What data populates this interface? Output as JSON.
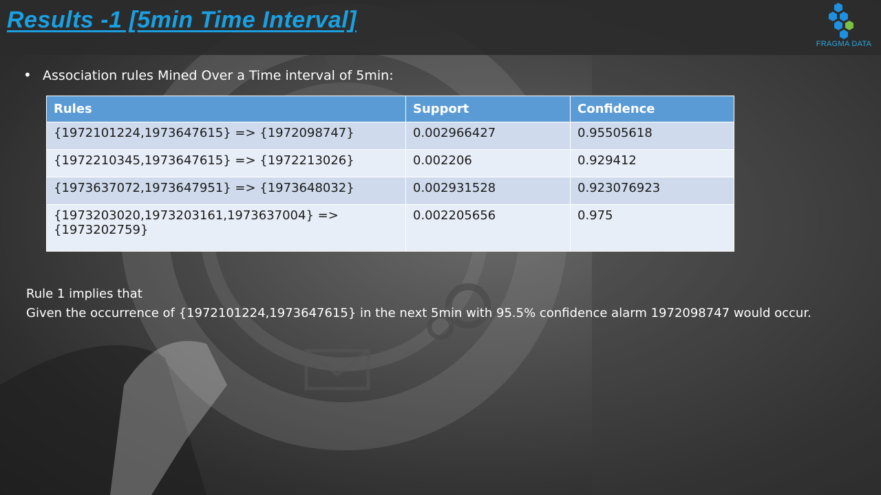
{
  "slide": {
    "title": "Results -1 [5min  Time Interval]"
  },
  "logo": {
    "text": "FRAGMA DATA",
    "colors": [
      "#1e90e0",
      "#7ac143"
    ]
  },
  "bullet": {
    "symbol": "•",
    "text": "Association rules Mined Over a Time interval of 5min:"
  },
  "table": {
    "headers": [
      "Rules",
      "Support",
      "Confidence"
    ],
    "rows": [
      {
        "rule": "{1972101224,1973647615} => {1972098747}",
        "support": "0.002966427",
        "confidence": "0.95505618"
      },
      {
        "rule": "{1972210345,1973647615} => {1972213026}",
        "support": "0.002206",
        "confidence": "0.929412"
      },
      {
        "rule": "{1973637072,1973647951} => {1973648032}",
        "support": "0.002931528",
        "confidence": "0.923076923"
      },
      {
        "rule": "{1973203020,1973203161,1973637004} => {1973202759}",
        "support": "0.002205656",
        "confidence": "0.975"
      }
    ],
    "header_color": "#5b9bd5"
  },
  "conclusion": {
    "line1": "Rule 1 implies that",
    "line2": "Given the occurrence of {1972101224,1973647615}  in the next  5min with 95.5% confidence  alarm 1972098747 would occur."
  }
}
